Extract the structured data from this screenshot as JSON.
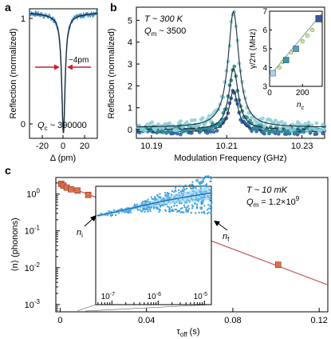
{
  "panels": {
    "a": {
      "letter": "a",
      "ylabel": "Reflection (normalized)",
      "xlabel": "Δ (pm)",
      "yticks": [
        "1",
        "0"
      ],
      "xticks": [
        "-20",
        "0",
        "20"
      ],
      "annot_width": "~4pm",
      "annot_q": "Q",
      "annot_q_sub": "c",
      "annot_q_val": " ~ 390000",
      "colors": {
        "data": "#3a8fd0",
        "fit": "#1a2a3a",
        "arrow": "#c8202a"
      }
    },
    "b": {
      "letter": "b",
      "ylabel": "Reflection (normalized)",
      "xlabel": "Modulation Frequency (GHz)",
      "yticks": [
        "0",
        "1",
        "2",
        "3",
        "4",
        "5"
      ],
      "xticks": [
        "10.19",
        "10.21",
        "10.23"
      ],
      "annot_t": "T ~ 300 K",
      "annot_q": "Q",
      "annot_q_sub": "m",
      "annot_q_val": " ~ 3500",
      "inset": {
        "ylabel": "γ/2π (MHz)",
        "xlabel": "n",
        "xlabel_sub": "c",
        "yticks": [
          "3",
          "4",
          "5",
          "6",
          "7"
        ],
        "xticks": [
          "0",
          "200"
        ]
      },
      "colors": {
        "s1": "#2f5faa",
        "s2": "#2e8f8a",
        "s3": "#8fd0d8",
        "fit": "#1a2a3a",
        "inset_line": "#9ab0c0"
      }
    },
    "c": {
      "letter": "c",
      "ylabel": "⟨n⟩ (phonons)",
      "xlabel": "τ",
      "xlabel_sub": "off",
      "xlabel_unit": " (s)",
      "yticks": [
        "10",
        "10",
        "10",
        "10"
      ],
      "ytick_exps": [
        "0",
        "-1",
        "-2",
        "-3"
      ],
      "xticks": [
        "0",
        "0.04",
        "0.08",
        "0.12"
      ],
      "annot_t": "T ~ 10 mK",
      "annot_q": "Q",
      "annot_q_sub": "m",
      "annot_q_val": " = 1.2×10",
      "annot_q_exp": "9",
      "inset": {
        "xticks": [
          "10",
          "10",
          "10"
        ],
        "xtick_exps": [
          "-7",
          "-6",
          "-5"
        ],
        "label_ni": "n",
        "label_ni_sub": "i",
        "label_nf": "n",
        "label_nf_sub": "f"
      },
      "colors": {
        "line": "#c75a5a",
        "marker": "#e0704a",
        "marker_edge": "#8a2a1a",
        "inset_pts": "#3aa0e0",
        "inset_fit": "#1a6fb0"
      }
    }
  },
  "chart_data": [
    {
      "type": "line",
      "panel": "a",
      "title": "",
      "xlabel": "Δ (pm)",
      "ylabel": "Reflection (normalized)",
      "xlim": [
        -32,
        32
      ],
      "ylim": [
        0.08,
        1.03
      ],
      "series": [
        {
          "x": [
            -30,
            -20,
            -10,
            -5,
            -3,
            -2,
            -1,
            -0.5,
            0,
            0.5,
            1,
            2,
            3,
            5,
            10,
            20,
            30
          ],
          "y": [
            0.995,
            0.99,
            0.975,
            0.93,
            0.85,
            0.76,
            0.5,
            0.3,
            0.15,
            0.3,
            0.5,
            0.76,
            0.85,
            0.93,
            0.975,
            0.99,
            0.995
          ]
        }
      ],
      "annotations": [
        "~4pm",
        "Qc ~ 390000"
      ]
    },
    {
      "type": "scatter",
      "panel": "b",
      "title": "",
      "xlabel": "Modulation Frequency (GHz)",
      "ylabel": "Reflection (normalized)",
      "xlim": [
        10.186,
        10.236
      ],
      "ylim": [
        -0.4,
        5.6
      ],
      "series": [
        {
          "center": 10.2118,
          "amplitude": 5.3,
          "baseline": 0.1,
          "linewidth_ghz": 0.0035
        },
        {
          "center": 10.2118,
          "amplitude": 2.8,
          "baseline": 0.0,
          "linewidth_ghz": 0.003
        },
        {
          "center": 10.2118,
          "amplitude": 1.9,
          "baseline": -0.1,
          "linewidth_ghz": 0.0028
        }
      ],
      "annotations": [
        "T ~ 300 K",
        "Qm ~ 3500"
      ]
    },
    {
      "type": "scatter",
      "panel": "b-inset",
      "title": "",
      "xlabel": "nc",
      "ylabel": "γ/2π (MHz)",
      "xlim": [
        0,
        320
      ],
      "ylim": [
        3,
        7
      ],
      "x": [
        20,
        60,
        80,
        100,
        130,
        160,
        200,
        230,
        260,
        300
      ],
      "y": [
        3.7,
        4.0,
        4.3,
        4.4,
        4.8,
        5.0,
        5.4,
        5.7,
        6.0,
        6.6
      ]
    },
    {
      "type": "scatter",
      "panel": "c",
      "title": "",
      "xlabel": "τoff (s)",
      "ylabel": "⟨n⟩ (phonons)",
      "xlim": [
        -0.002,
        0.124
      ],
      "ylim_log10": [
        -3.2,
        0.45
      ],
      "x": [
        0.0005,
        0.0015,
        0.003,
        0.005,
        0.008,
        0.013,
        0.0253,
        0.101
      ],
      "y": [
        1.9,
        1.7,
        1.5,
        1.35,
        1.25,
        0.95,
        0.38,
        0.012
      ],
      "fit": {
        "x": [
          0,
          0.124
        ],
        "y": [
          1.9,
          0.0034
        ]
      },
      "annotations": [
        "T ~ 10 mK",
        "Qm = 1.2×10^9",
        "ni",
        "nf"
      ]
    }
  ]
}
